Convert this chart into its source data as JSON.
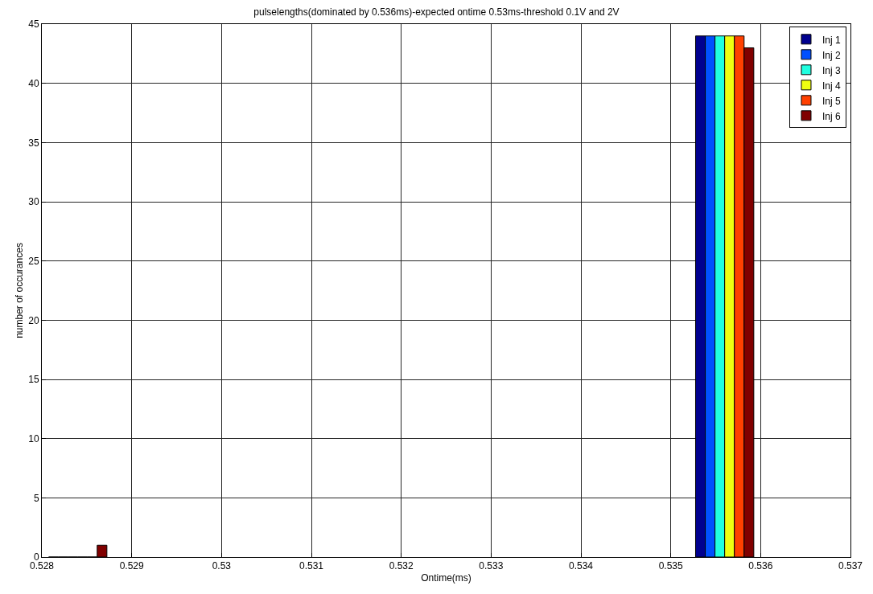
{
  "chart_data": {
    "type": "bar",
    "title": "pulselengths(dominated by 0.536ms)-expected ontime 0.53ms-threshold 0.1V and 2V",
    "xlabel": "Ontime(ms)",
    "ylabel": "number of occurances",
    "x": [
      0.5284,
      0.5356
    ],
    "series": [
      {
        "name": "Inj 1",
        "color": "#00008f",
        "values": [
          0,
          44
        ]
      },
      {
        "name": "Inj 2",
        "color": "#0050ff",
        "values": [
          0,
          44
        ]
      },
      {
        "name": "Inj 3",
        "color": "#20ffe0",
        "values": [
          0,
          44
        ]
      },
      {
        "name": "Inj 4",
        "color": "#f0ff10",
        "values": [
          0,
          44
        ]
      },
      {
        "name": "Inj 5",
        "color": "#ff4000",
        "values": [
          0,
          44
        ]
      },
      {
        "name": "Inj 6",
        "color": "#800000",
        "values": [
          1,
          43
        ]
      }
    ],
    "xlim": [
      0.528,
      0.537
    ],
    "xticks": [
      0.528,
      0.529,
      0.53,
      0.531,
      0.532,
      0.533,
      0.534,
      0.535,
      0.536,
      0.537
    ],
    "ylim": [
      0,
      45
    ],
    "yticks": [
      0,
      5,
      10,
      15,
      20,
      25,
      30,
      35,
      40,
      45
    ],
    "grid": true,
    "legend": "top right"
  }
}
